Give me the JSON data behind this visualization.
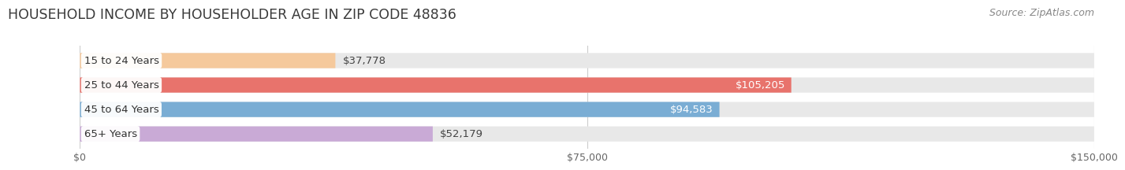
{
  "title": "HOUSEHOLD INCOME BY HOUSEHOLDER AGE IN ZIP CODE 48836",
  "source": "Source: ZipAtlas.com",
  "categories": [
    "15 to 24 Years",
    "25 to 44 Years",
    "45 to 64 Years",
    "65+ Years"
  ],
  "values": [
    37778,
    105205,
    94583,
    52179
  ],
  "labels": [
    "$37,778",
    "$105,205",
    "$94,583",
    "$52,179"
  ],
  "bar_colors": [
    "#f5c99c",
    "#e8736c",
    "#7aadd4",
    "#c9aad6"
  ],
  "bar_track_color": "#e8e8e8",
  "label_colors": [
    "#444444",
    "#ffffff",
    "#ffffff",
    "#444444"
  ],
  "xlim": [
    0,
    150000
  ],
  "xticks": [
    0,
    75000,
    150000
  ],
  "xticklabels": [
    "$0",
    "$75,000",
    "$150,000"
  ],
  "background_color": "#ffffff",
  "title_fontsize": 12.5,
  "source_fontsize": 9,
  "bar_label_fontsize": 9.5,
  "category_fontsize": 9.5,
  "title_color": "#3a3a3a",
  "source_color": "#888888"
}
